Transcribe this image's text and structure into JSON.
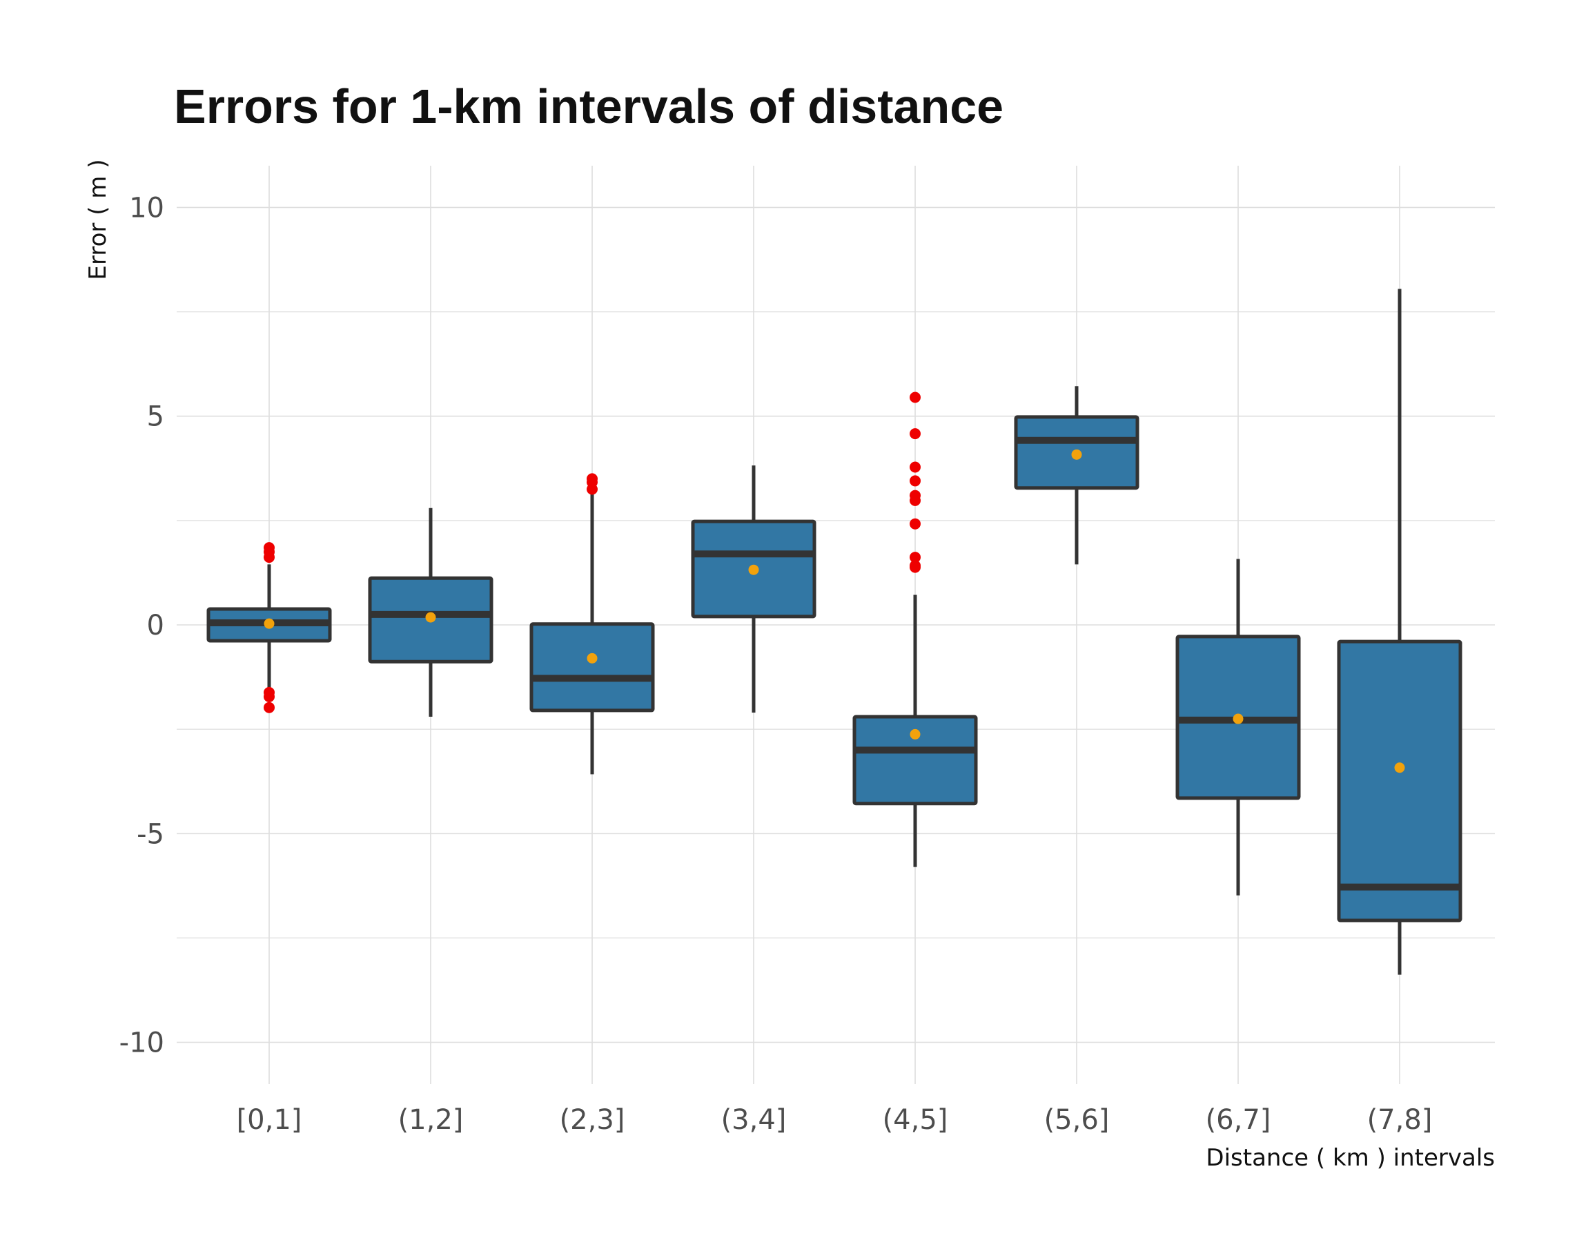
{
  "chart_data": {
    "type": "boxplot",
    "title": "Errors for 1-km intervals of distance",
    "xlabel": "Distance ( km ) intervals",
    "ylabel": "Error ( m )",
    "ylim": [
      -11,
      11
    ],
    "y_ticks": [
      10,
      5,
      0,
      -5,
      -10
    ],
    "y_tick_labels": [
      "10",
      "5",
      "0",
      "-5",
      "-10"
    ],
    "y_minor_ticks": [
      7.5,
      2.5,
      -2.5,
      -7.5
    ],
    "grid": true,
    "categories": [
      "[0,1]",
      "(1,2]",
      "(2,3]",
      "(3,4]",
      "(4,5]",
      "(5,6]",
      "(6,7]",
      "(7,8]"
    ],
    "boxes": [
      {
        "category": "[0,1]",
        "whisker_low": -1.6,
        "q1": -0.38,
        "median": 0.05,
        "q3": 0.38,
        "whisker_high": 1.45,
        "mean": 0.03,
        "outliers": [
          1.85,
          1.75,
          1.62,
          -1.62,
          -1.72,
          -1.98
        ]
      },
      {
        "category": "(1,2]",
        "whisker_low": -2.2,
        "q1": -0.88,
        "median": 0.25,
        "q3": 1.12,
        "whisker_high": 2.8,
        "mean": 0.18,
        "outliers": []
      },
      {
        "category": "(2,3]",
        "whisker_low": -3.58,
        "q1": -2.05,
        "median": -1.28,
        "q3": 0.02,
        "whisker_high": 3.15,
        "mean": -0.8,
        "outliers": [
          3.5,
          3.42,
          3.25
        ]
      },
      {
        "category": "(3,4]",
        "whisker_low": -2.1,
        "q1": 0.2,
        "median": 1.7,
        "q3": 2.48,
        "whisker_high": 3.82,
        "mean": 1.32,
        "outliers": []
      },
      {
        "category": "(4,5]",
        "whisker_low": -5.8,
        "q1": -4.28,
        "median": -3.0,
        "q3": -2.2,
        "whisker_high": 0.72,
        "mean": -2.62,
        "outliers": [
          5.45,
          4.58,
          3.78,
          3.45,
          3.1,
          2.98,
          2.42,
          1.62,
          1.42,
          1.38
        ]
      },
      {
        "category": "(5,6]",
        "whisker_low": 1.45,
        "q1": 3.28,
        "median": 4.42,
        "q3": 4.98,
        "whisker_high": 5.72,
        "mean": 4.08,
        "outliers": []
      },
      {
        "category": "(6,7]",
        "whisker_low": -6.48,
        "q1": -4.15,
        "median": -2.28,
        "q3": -0.28,
        "whisker_high": 1.58,
        "mean": -2.25,
        "outliers": []
      },
      {
        "category": "(7,8]",
        "whisker_low": -8.38,
        "q1": -7.08,
        "median": -6.28,
        "q3": -0.4,
        "whisker_high": 8.05,
        "mean": -3.42,
        "outliers": []
      }
    ],
    "colors": {
      "box_fill": "#3277A4",
      "box_stroke": "#333333",
      "mean_point": "#F2A20C",
      "outlier": "#EE0000",
      "grid": "#DEDEDE"
    }
  }
}
